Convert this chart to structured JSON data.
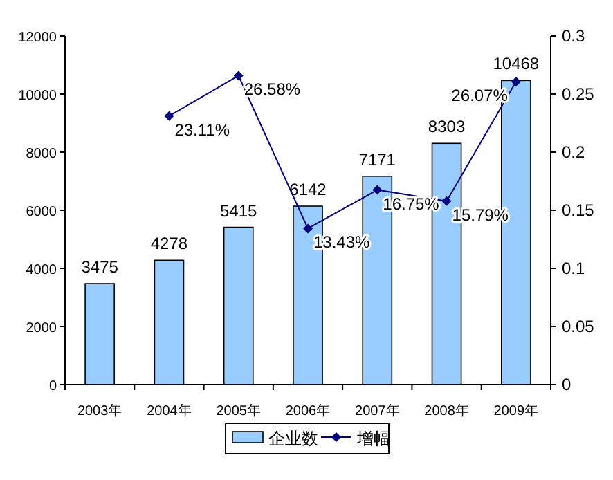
{
  "chart_data": {
    "type": "bar",
    "categories": [
      "2003年",
      "2004年",
      "2005年",
      "2006年",
      "2007年",
      "2008年",
      "2009年"
    ],
    "series": [
      {
        "name": "企业数",
        "color": "#99ccff",
        "values": [
          3475,
          4278,
          5415,
          6142,
          7171,
          8303,
          10468
        ],
        "value_labels": [
          "3475",
          "4278",
          "5415",
          "6142",
          "7171",
          "8303",
          "10468"
        ]
      },
      {
        "name": "增幅",
        "type": "line",
        "axis": "y2",
        "color": "#000080",
        "values": [
          null,
          0.2311,
          0.2658,
          0.1343,
          0.1675,
          0.1579,
          0.2607
        ],
        "value_labels": [
          null,
          "23.11%",
          "26.58%",
          "13.43%",
          "16.75%",
          "15.79%",
          "26.07%"
        ]
      }
    ],
    "ylim": [
      0,
      12000
    ],
    "yticks": [
      0,
      2000,
      4000,
      6000,
      8000,
      10000,
      12000
    ],
    "y2lim": [
      0,
      0.3
    ],
    "y2ticks": [
      0,
      0.05,
      0.1,
      0.15,
      0.2,
      0.25,
      0.3
    ],
    "marker": "diamond",
    "line_style": "solid",
    "legend": "bottom"
  }
}
